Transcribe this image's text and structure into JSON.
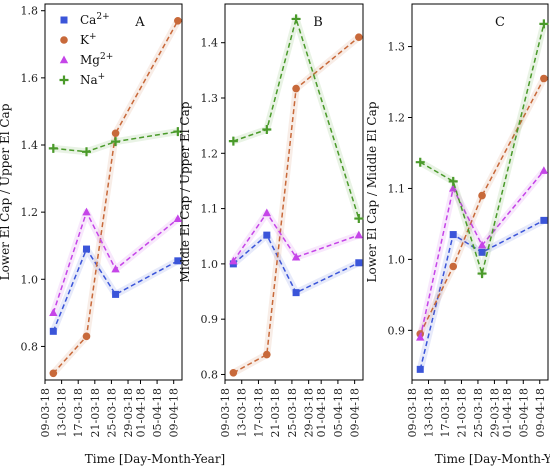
{
  "chart_data": [
    {
      "type": "line",
      "panel_label": "A",
      "ylabel": "Lower El Cap / Upper El Cap",
      "xlabel": "Time [Day-Month-Year]",
      "ylim": [
        0.7,
        1.82
      ],
      "yticks": [
        "0.8",
        "1.0",
        "1.2",
        "1.4",
        "1.6",
        "1.8"
      ],
      "ytick_values": [
        0.8,
        1.0,
        1.2,
        1.4,
        1.6,
        1.8
      ],
      "xticks": [
        "09-03-18",
        "13-03-18",
        "17-03-18",
        "21-03-18",
        "25-03-18",
        "29-03-18",
        "01-04-18",
        "05-04-18",
        "09-04-18"
      ],
      "x": [
        2,
        10,
        17,
        32
      ],
      "legend": "top-left",
      "series": [
        {
          "name": "Ca",
          "name_sup": "2+",
          "marker": "square",
          "color": "#3b55d9",
          "values": [
            0.845,
            1.09,
            0.955,
            1.055
          ]
        },
        {
          "name": "K",
          "name_sup": "+",
          "marker": "circle",
          "color": "#c8693a",
          "values": [
            0.72,
            0.83,
            1.435,
            1.77
          ]
        },
        {
          "name": "Mg",
          "name_sup": "2+",
          "marker": "triangle",
          "color": "#c545e8",
          "values": [
            0.9,
            1.2,
            1.03,
            1.18
          ]
        },
        {
          "name": "Na",
          "name_sup": "+",
          "marker": "plus",
          "color": "#4a9a2a",
          "values": [
            1.39,
            1.38,
            1.41,
            1.44
          ]
        }
      ]
    },
    {
      "type": "line",
      "panel_label": "B",
      "ylabel": "Middle El Cap / Upper El Cap",
      "xlabel": "",
      "ylim": [
        0.79,
        1.47
      ],
      "yticks": [
        "0.8",
        "0.9",
        "1.0",
        "1.1",
        "1.2",
        "1.3",
        "1.4"
      ],
      "ytick_values": [
        0.8,
        0.9,
        1.0,
        1.1,
        1.2,
        1.3,
        1.4
      ],
      "xticks": [
        "09-03-18",
        "13-03-18",
        "17-03-18",
        "21-03-18",
        "25-03-18",
        "29-03-18",
        "01-04-18",
        "05-04-18",
        "09-04-18"
      ],
      "x": [
        2,
        10,
        17,
        32
      ],
      "series": [
        {
          "name": "Ca",
          "name_sup": "2+",
          "marker": "square",
          "color": "#3b55d9",
          "values": [
            1.0,
            1.052,
            0.948,
            1.002
          ]
        },
        {
          "name": "K",
          "name_sup": "+",
          "marker": "circle",
          "color": "#c8693a",
          "values": [
            0.803,
            0.836,
            1.317,
            1.41
          ]
        },
        {
          "name": "Mg",
          "name_sup": "2+",
          "marker": "triangle",
          "color": "#c545e8",
          "values": [
            1.005,
            1.092,
            1.012,
            1.052
          ]
        },
        {
          "name": "Na",
          "name_sup": "+",
          "marker": "plus",
          "color": "#4a9a2a",
          "values": [
            1.222,
            1.243,
            1.443,
            1.082
          ]
        }
      ]
    },
    {
      "type": "line",
      "panel_label": "C",
      "ylabel": "Lower El Cap / Middle El Cap",
      "xlabel": "Time [Day-Month-Year]",
      "ylim": [
        0.83,
        1.36
      ],
      "yticks": [
        "0.9",
        "1.0",
        "1.1",
        "1.2",
        "1.3"
      ],
      "ytick_values": [
        0.9,
        1.0,
        1.1,
        1.2,
        1.3
      ],
      "xticks": [
        "09-03-18",
        "13-03-18",
        "17-03-18",
        "21-03-18",
        "25-03-18",
        "29-03-18",
        "01-04-18",
        "05-04-18",
        "09-04-18"
      ],
      "x": [
        2,
        10,
        17,
        32
      ],
      "series": [
        {
          "name": "Ca",
          "name_sup": "2+",
          "marker": "square",
          "color": "#3b55d9",
          "values": [
            0.845,
            1.035,
            1.01,
            1.055
          ]
        },
        {
          "name": "K",
          "name_sup": "+",
          "marker": "circle",
          "color": "#c8693a",
          "values": [
            0.895,
            0.99,
            1.09,
            1.255
          ]
        },
        {
          "name": "Mg",
          "name_sup": "2+",
          "marker": "triangle",
          "color": "#c545e8",
          "values": [
            0.89,
            1.1,
            1.02,
            1.125
          ]
        },
        {
          "name": "Na",
          "name_sup": "+",
          "marker": "plus",
          "color": "#4a9a2a",
          "values": [
            1.137,
            1.11,
            0.98,
            1.332
          ]
        }
      ]
    }
  ]
}
